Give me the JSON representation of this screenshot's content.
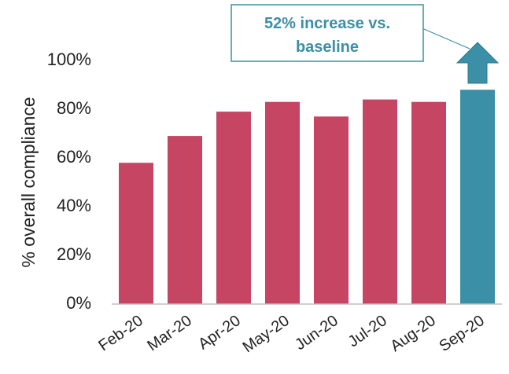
{
  "chart_data": {
    "type": "bar",
    "title": "",
    "xlabel": "",
    "ylabel": "% overall compliance",
    "ylim": [
      0,
      100
    ],
    "yticks": [
      "0%",
      "20%",
      "40%",
      "60%",
      "80%",
      "100%"
    ],
    "ytick_values": [
      0,
      20,
      40,
      60,
      80,
      100
    ],
    "categories": [
      "Feb-20",
      "Mar-20",
      "Apr-20",
      "May-20",
      "Jun-20",
      "Jul-20",
      "Aug-20",
      "Sep-20"
    ],
    "values": [
      58,
      69,
      79,
      83,
      77,
      84,
      83,
      88
    ],
    "grid": false,
    "legend": "none",
    "colors": {
      "default_bar": "#C54563",
      "highlight_bar": "#3B8FA6",
      "axis": "#BFBFBF"
    },
    "highlight_index": 7,
    "annotation": {
      "line1": "52% increase vs.",
      "line2": "baseline",
      "text_color": "#3B8FA6",
      "border_color": "#3B8FA6",
      "arrow": "up-arrow-icon"
    }
  }
}
